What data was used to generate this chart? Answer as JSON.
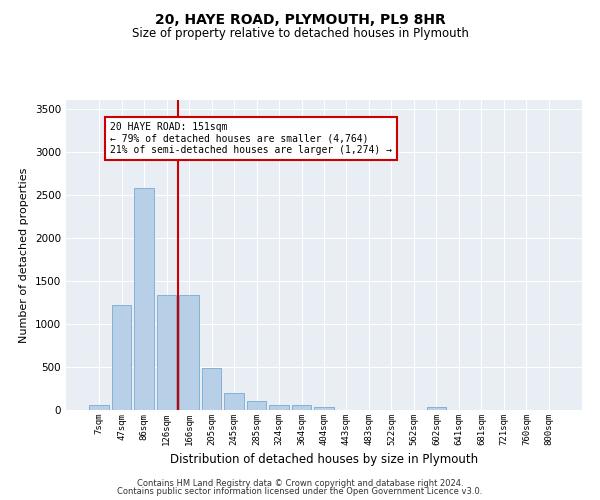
{
  "title": "20, HAYE ROAD, PLYMOUTH, PL9 8HR",
  "subtitle": "Size of property relative to detached houses in Plymouth",
  "xlabel": "Distribution of detached houses by size in Plymouth",
  "ylabel": "Number of detached properties",
  "categories": [
    "7sqm",
    "47sqm",
    "86sqm",
    "126sqm",
    "166sqm",
    "205sqm",
    "245sqm",
    "285sqm",
    "324sqm",
    "364sqm",
    "404sqm",
    "443sqm",
    "483sqm",
    "522sqm",
    "562sqm",
    "602sqm",
    "641sqm",
    "681sqm",
    "721sqm",
    "760sqm",
    "800sqm"
  ],
  "values": [
    55,
    1220,
    2580,
    1340,
    1340,
    490,
    195,
    105,
    55,
    55,
    40,
    0,
    0,
    0,
    0,
    40,
    0,
    0,
    0,
    0,
    0
  ],
  "bar_color": "#b8cfe8",
  "bar_edge_color": "#7aaad0",
  "highlight_line_color": "#cc0000",
  "annotation_line1": "20 HAYE ROAD: 151sqm",
  "annotation_line2": "← 79% of detached houses are smaller (4,764)",
  "annotation_line3": "21% of semi-detached houses are larger (1,274) →",
  "annotation_box_color": "#cc0000",
  "ylim": [
    0,
    3600
  ],
  "yticks": [
    0,
    500,
    1000,
    1500,
    2000,
    2500,
    3000,
    3500
  ],
  "background_color": "#e8eef4",
  "footer_line1": "Contains HM Land Registry data © Crown copyright and database right 2024.",
  "footer_line2": "Contains public sector information licensed under the Open Government Licence v3.0."
}
